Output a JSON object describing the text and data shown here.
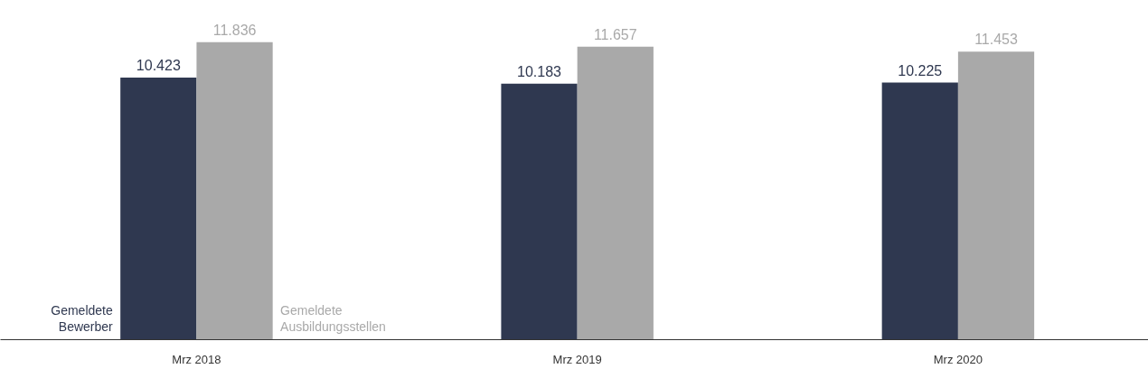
{
  "chart_data": {
    "type": "bar",
    "categories": [
      "Mrz 2018",
      "Mrz 2019",
      "Mrz 2020"
    ],
    "series": [
      {
        "name": "Gemeldete\nBewerber",
        "color": "#2f3850",
        "values": [
          10423,
          10183,
          10225
        ],
        "value_labels": [
          "10.423",
          "10.183",
          "10.225"
        ]
      },
      {
        "name": "Gemeldete\nAusbildungsstellen",
        "color": "#a9a9a9",
        "values": [
          11836,
          11657,
          11453
        ],
        "value_labels": [
          "11.836",
          "11.657",
          "11.453"
        ]
      }
    ],
    "grid": false,
    "legend": false
  }
}
